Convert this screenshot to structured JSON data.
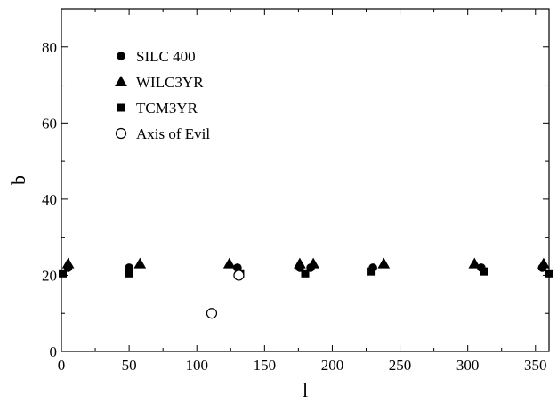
{
  "chart_data": {
    "type": "scatter",
    "xlabel": "l",
    "ylabel": "b",
    "xlim": [
      0,
      360
    ],
    "ylim": [
      0,
      90
    ],
    "xticks": [
      0,
      50,
      100,
      150,
      200,
      250,
      300,
      350
    ],
    "yticks": [
      0,
      20,
      40,
      60,
      80
    ],
    "grid": false,
    "legend_position": "top-left",
    "series": [
      {
        "name": "SILC 400",
        "marker": "circle",
        "filled": true,
        "color": "#000000",
        "points": [
          [
            5,
            22
          ],
          [
            50,
            22
          ],
          [
            130,
            22
          ],
          [
            176,
            22
          ],
          [
            184,
            22
          ],
          [
            230,
            22
          ],
          [
            310,
            22
          ],
          [
            355,
            22
          ]
        ]
      },
      {
        "name": "WILC3YR",
        "marker": "triangle",
        "filled": true,
        "color": "#000000",
        "points": [
          [
            5,
            23
          ],
          [
            58,
            23
          ],
          [
            124,
            23
          ],
          [
            176,
            23
          ],
          [
            186,
            23
          ],
          [
            238,
            23
          ],
          [
            305,
            23
          ],
          [
            356,
            23
          ]
        ]
      },
      {
        "name": "TCM3YR",
        "marker": "square",
        "filled": true,
        "color": "#000000",
        "points": [
          [
            1,
            20.5
          ],
          [
            50,
            20.5
          ],
          [
            132,
            20.5
          ],
          [
            180,
            20.5
          ],
          [
            229,
            21
          ],
          [
            312,
            21
          ],
          [
            360,
            20.5
          ]
        ]
      },
      {
        "name": "Axis of Evil",
        "marker": "circle",
        "filled": false,
        "color": "#000000",
        "points": [
          [
            111,
            10
          ],
          [
            131,
            20
          ]
        ]
      }
    ]
  }
}
